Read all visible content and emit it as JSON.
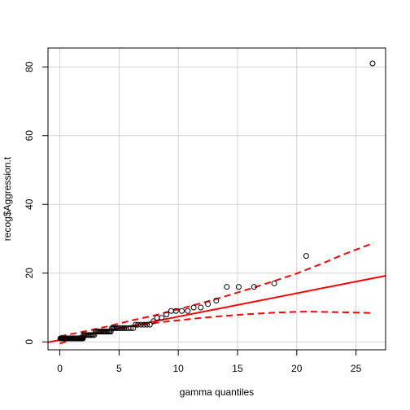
{
  "chart_data": {
    "type": "scatter",
    "title": "",
    "xlabel": "gamma quantiles",
    "ylabel": "recog$Aggression.t",
    "xlim": [
      -1.0,
      27.5
    ],
    "ylim": [
      -2.3,
      85.5
    ],
    "xticks": [
      0,
      5,
      10,
      15,
      20,
      25
    ],
    "yticks": [
      0,
      20,
      40,
      60,
      80
    ],
    "grid": true,
    "points": {
      "x": [
        0.05,
        0.1,
        0.15,
        0.2,
        0.25,
        0.3,
        0.35,
        0.4,
        0.45,
        0.5,
        0.55,
        0.6,
        0.65,
        0.7,
        0.75,
        0.8,
        0.85,
        0.9,
        0.95,
        1.0,
        1.05,
        1.1,
        1.15,
        1.2,
        1.25,
        1.3,
        1.35,
        1.4,
        1.45,
        1.5,
        1.55,
        1.6,
        1.65,
        1.7,
        1.75,
        1.8,
        1.85,
        1.9,
        1.95,
        2.0,
        2.1,
        2.2,
        2.3,
        2.4,
        2.5,
        2.6,
        2.7,
        2.8,
        2.9,
        3.0,
        3.1,
        3.2,
        3.3,
        3.4,
        3.5,
        3.6,
        3.7,
        3.8,
        3.9,
        4.0,
        4.1,
        4.2,
        4.3,
        4.4,
        4.5,
        4.6,
        4.7,
        4.85,
        5.0,
        5.15,
        5.3,
        5.45,
        5.6,
        5.8,
        6.0,
        6.2,
        6.4,
        6.6,
        6.85,
        7.1,
        7.35,
        7.6,
        7.9,
        8.2,
        8.6,
        9.0,
        9.4,
        9.8,
        10.3,
        10.8,
        11.3,
        11.9,
        12.5,
        13.2,
        14.1,
        15.1,
        16.4,
        18.1,
        20.8,
        26.4
      ],
      "y": [
        1,
        1,
        1,
        1,
        1,
        1,
        1,
        1,
        1,
        1,
        1,
        1,
        1,
        1,
        1,
        1,
        1,
        1,
        1,
        1,
        1,
        1,
        1,
        1,
        1,
        1,
        1,
        1,
        1,
        1,
        1,
        1,
        1,
        1,
        1,
        1,
        1,
        1,
        1,
        2,
        2,
        2,
        2,
        2,
        2,
        2,
        2,
        2,
        2,
        3,
        3,
        3,
        3,
        3,
        3,
        3,
        3,
        3,
        3,
        3,
        3,
        3,
        3,
        4,
        4,
        4,
        4,
        4,
        4,
        4,
        4,
        4,
        4,
        4,
        4,
        4,
        5,
        5,
        5,
        5,
        5,
        5,
        6,
        7,
        7,
        8,
        9,
        9,
        9,
        9,
        10,
        10,
        11,
        12,
        16,
        16,
        16,
        17,
        25,
        81
      ]
    },
    "reference_line": {
      "intercept": 0.55,
      "slope": 0.68
    },
    "confidence_band": {
      "upper": {
        "x": [
          0,
          2,
          4,
          6,
          8,
          10,
          12,
          14,
          16,
          18,
          20,
          22,
          24,
          26.5
        ],
        "y": [
          1.6,
          3.0,
          4.5,
          6.2,
          7.7,
          9.5,
          11.3,
          13.3,
          15.4,
          17.6,
          19.9,
          22.6,
          25.5,
          28.8
        ]
      },
      "lower": {
        "x": [
          0,
          2,
          4,
          6,
          8,
          10,
          12,
          14,
          16,
          18,
          20,
          21,
          22,
          24,
          26.5
        ],
        "y": [
          -0.5,
          1.8,
          3.3,
          4.5,
          5.5,
          6.3,
          7.0,
          7.6,
          8.1,
          8.5,
          8.75,
          8.8,
          8.75,
          8.6,
          8.4
        ]
      }
    },
    "colors": {
      "points": "#000000",
      "line": "#ff0000",
      "grid": "#d3d3d3"
    }
  }
}
